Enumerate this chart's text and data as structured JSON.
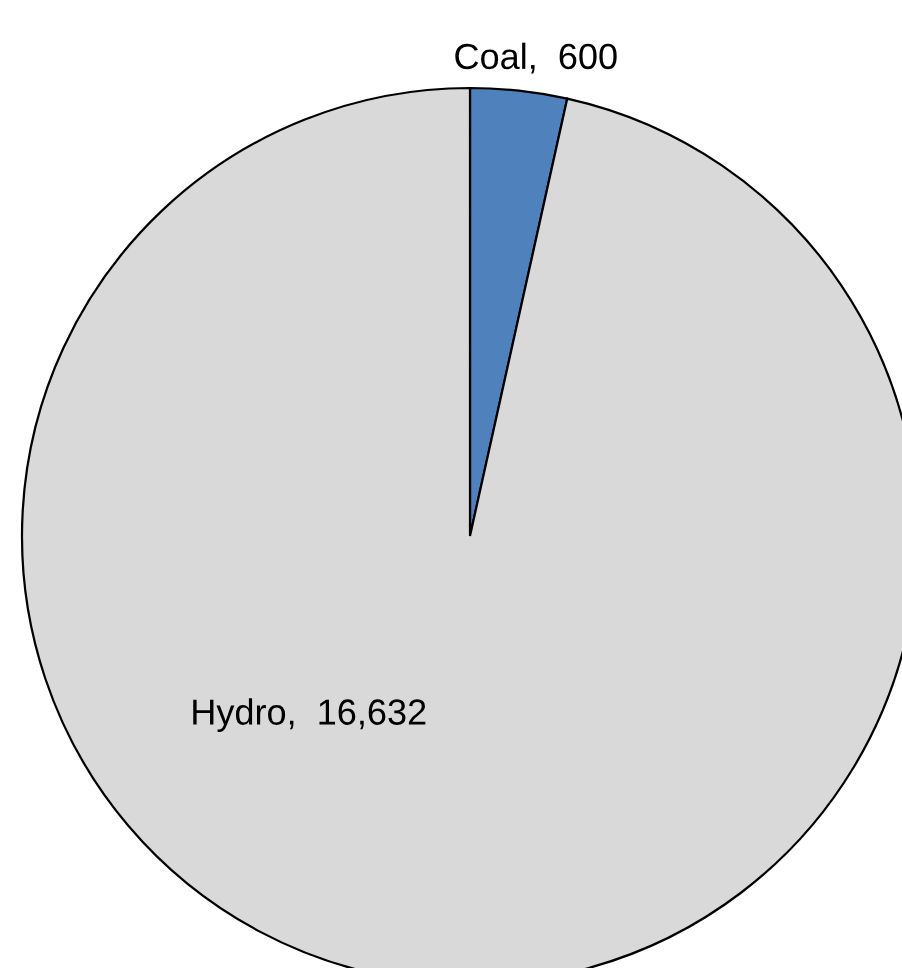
{
  "chart_data": {
    "type": "pie",
    "categories": [
      "Coal",
      "Hydro"
    ],
    "values": [
      600,
      16632
    ],
    "colors": [
      "#4f81bd",
      "#d9d9d9"
    ],
    "value_labels": [
      "600",
      "16,632"
    ],
    "legend": false
  }
}
